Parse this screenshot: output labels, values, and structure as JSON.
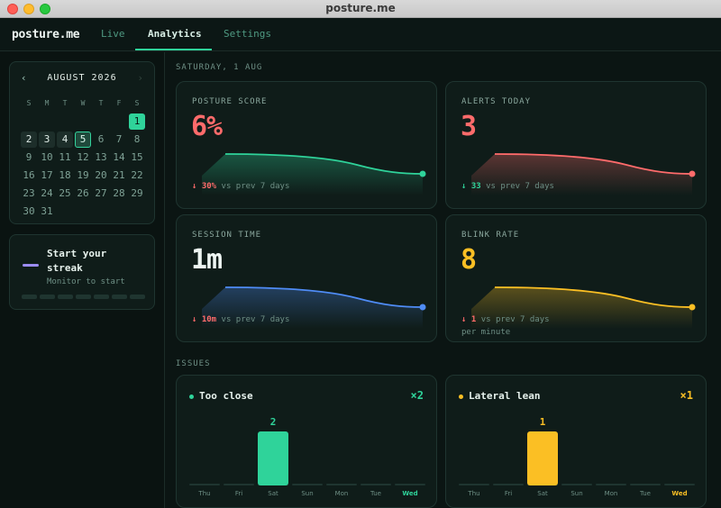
{
  "window": {
    "title": "posture.me"
  },
  "nav": {
    "logo": "posture.me",
    "tabs": [
      {
        "label": "Live"
      },
      {
        "label": "Analytics",
        "active": true
      },
      {
        "label": "Settings"
      }
    ]
  },
  "calendar": {
    "prev": "‹",
    "next": "›",
    "month": "AUGUST 2026",
    "weekdays": [
      "S",
      "M",
      "T",
      "W",
      "T",
      "F",
      "S"
    ],
    "first_weekday_offset": 6,
    "days_in_month": 31,
    "days_with_data": [
      2,
      3,
      4,
      5
    ],
    "selected_day": 5,
    "today": 1
  },
  "streak": {
    "title": "Start your streak",
    "subtitle": "Monitor to start",
    "segments": 7,
    "accent": "#9b8cf2"
  },
  "date_label": "SATURDAY, 1 AUG",
  "metrics": [
    {
      "label": "POSTURE SCORE",
      "value": "6%",
      "color": "#ff6b6b",
      "line_color": "#2fd39a",
      "delta_arrow": "↓",
      "delta_value": "30%",
      "delta_color": "#ff6b6b",
      "delta_text": "vs prev 7 days",
      "extra": ""
    },
    {
      "label": "ALERTS TODAY",
      "value": "3",
      "color": "#ff6b6b",
      "line_color": "#ff6b6b",
      "delta_arrow": "↓",
      "delta_value": "33",
      "delta_color": "#2fd39a",
      "delta_text": "vs prev 7 days",
      "extra": ""
    },
    {
      "label": "SESSION TIME",
      "value": "1m",
      "color": "#eef6f3",
      "line_color": "#4f8cf6",
      "delta_arrow": "↓",
      "delta_value": "10m",
      "delta_color": "#ff6b6b",
      "delta_text": "vs prev 7 days",
      "extra": ""
    },
    {
      "label": "BLINK RATE",
      "value": "8",
      "color": "#fbbf24",
      "line_color": "#fbbf24",
      "delta_arrow": "↓",
      "delta_value": "1",
      "delta_color": "#ff6b6b",
      "delta_text": "vs prev 7 days",
      "extra": "per minute"
    }
  ],
  "issues_label": "ISSUES",
  "issues": [
    {
      "title": "Too close",
      "count": "×2",
      "color": "#2fd39a",
      "days": [
        "Thu",
        "Fri",
        "Sat",
        "Sun",
        "Mon",
        "Tue",
        "Wed"
      ],
      "values": [
        0,
        0,
        2,
        0,
        0,
        0,
        0
      ],
      "max": 2,
      "current_day_index": 6
    },
    {
      "title": "Lateral lean",
      "count": "×1",
      "color": "#fbbf24",
      "days": [
        "Thu",
        "Fri",
        "Sat",
        "Sun",
        "Mon",
        "Tue",
        "Wed"
      ],
      "values": [
        0,
        0,
        1,
        0,
        0,
        0,
        0
      ],
      "max": 1,
      "current_day_index": 6
    }
  ]
}
